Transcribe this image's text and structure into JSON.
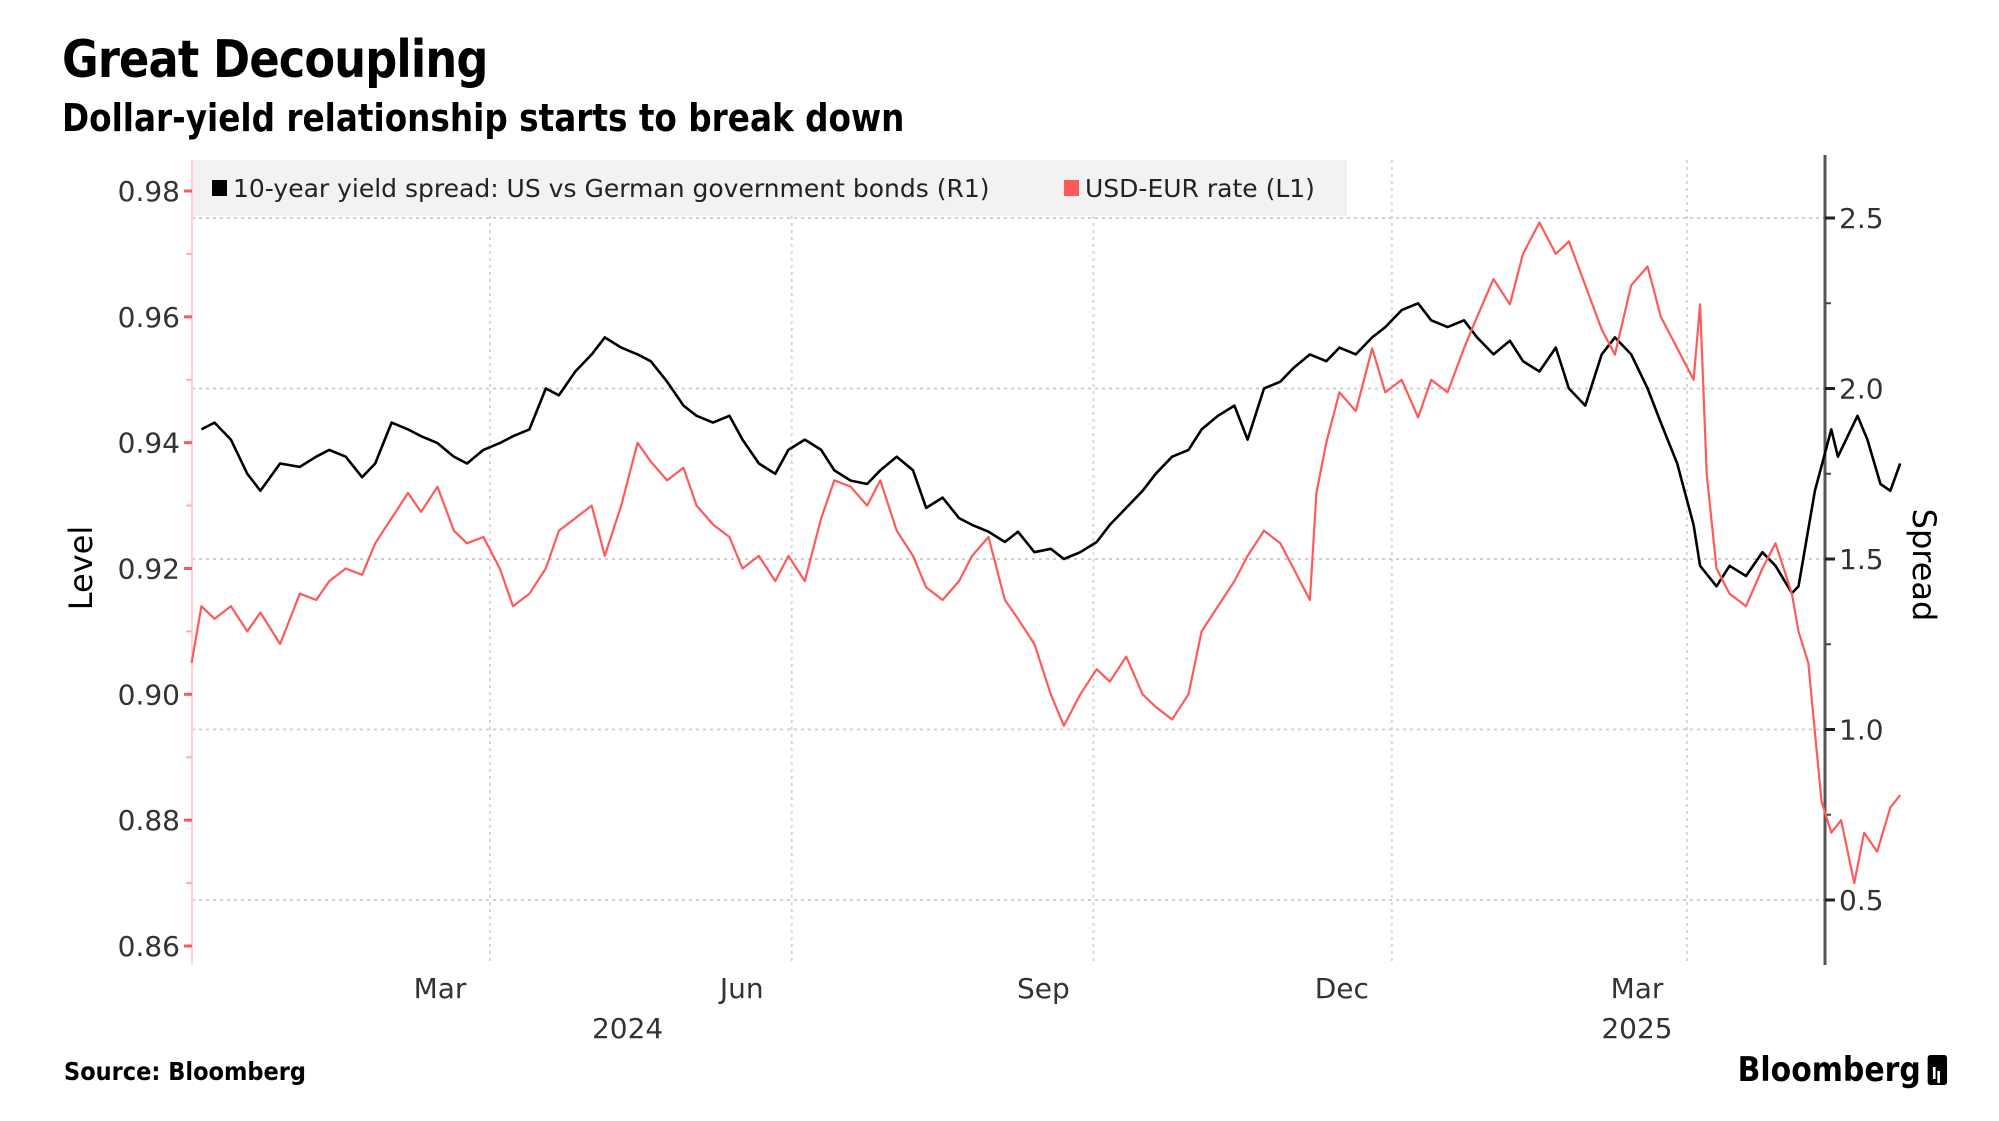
{
  "header": {
    "title": "Great Decoupling",
    "subtitle": "Dollar-yield relationship starts to break down"
  },
  "footer": {
    "source": "Source: Bloomberg",
    "brand": "Bloomberg"
  },
  "colors": {
    "spread": "#000000",
    "usdeur": "#ff5a5a",
    "legend_bg": "#f2f2f2",
    "grid": "#c8c8c8"
  },
  "chart_data": {
    "type": "line",
    "title": "Great Decoupling",
    "subtitle": "Dollar-yield relationship starts to break down",
    "xlabel": "",
    "ylabel_left": "Level",
    "ylabel_right": "Spread",
    "ylim_left": [
      0.86,
      0.98
    ],
    "ylim_right": [
      0.3,
      2.7
    ],
    "yticks_left": [
      "0.98",
      "0.96",
      "0.94",
      "0.92",
      "0.90",
      "0.88",
      "0.86"
    ],
    "yticks_left_values": [
      0.98,
      0.96,
      0.94,
      0.92,
      0.9,
      0.88,
      0.86
    ],
    "yticks_right": [
      "2.5",
      "2.0",
      "1.5",
      "1.0",
      "0.5"
    ],
    "yticks_right_values": [
      2.5,
      2.0,
      1.5,
      1.0,
      0.5
    ],
    "xticks": [
      {
        "label": "Mar",
        "date": "2024-03-01"
      },
      {
        "label": "Jun",
        "date": "2024-06-01"
      },
      {
        "label": "Sep",
        "date": "2024-09-01"
      },
      {
        "label": "Dec",
        "date": "2024-12-01"
      },
      {
        "label": "Mar",
        "date": "2025-03-01"
      }
    ],
    "year_labels": [
      {
        "label": "2024",
        "date": "2024-06-15"
      },
      {
        "label": "2025",
        "date": "2025-03-01"
      }
    ],
    "x_range": [
      "2023-12-01",
      "2025-04-20"
    ],
    "grid": true,
    "legend_position": "top-left",
    "series": [
      {
        "name": "10-year yield spread: US vs German government bonds (R1)",
        "axis": "right",
        "color": "#000000",
        "points": [
          [
            "2023-12-04",
            1.88
          ],
          [
            "2023-12-08",
            1.9
          ],
          [
            "2023-12-13",
            1.85
          ],
          [
            "2023-12-18",
            1.75
          ],
          [
            "2023-12-22",
            1.7
          ],
          [
            "2023-12-28",
            1.78
          ],
          [
            "2024-01-03",
            1.77
          ],
          [
            "2024-01-08",
            1.8
          ],
          [
            "2024-01-12",
            1.82
          ],
          [
            "2024-01-17",
            1.8
          ],
          [
            "2024-01-22",
            1.74
          ],
          [
            "2024-01-26",
            1.78
          ],
          [
            "2024-01-31",
            1.9
          ],
          [
            "2024-02-05",
            1.88
          ],
          [
            "2024-02-09",
            1.86
          ],
          [
            "2024-02-14",
            1.84
          ],
          [
            "2024-02-19",
            1.8
          ],
          [
            "2024-02-23",
            1.78
          ],
          [
            "2024-02-28",
            1.82
          ],
          [
            "2024-03-04",
            1.84
          ],
          [
            "2024-03-08",
            1.86
          ],
          [
            "2024-03-13",
            1.88
          ],
          [
            "2024-03-18",
            2.0
          ],
          [
            "2024-03-22",
            1.98
          ],
          [
            "2024-03-27",
            2.05
          ],
          [
            "2024-04-01",
            2.1
          ],
          [
            "2024-04-05",
            2.15
          ],
          [
            "2024-04-10",
            2.12
          ],
          [
            "2024-04-15",
            2.1
          ],
          [
            "2024-04-19",
            2.08
          ],
          [
            "2024-04-24",
            2.02
          ],
          [
            "2024-04-29",
            1.95
          ],
          [
            "2024-05-03",
            1.92
          ],
          [
            "2024-05-08",
            1.9
          ],
          [
            "2024-05-13",
            1.92
          ],
          [
            "2024-05-17",
            1.85
          ],
          [
            "2024-05-22",
            1.78
          ],
          [
            "2024-05-27",
            1.75
          ],
          [
            "2024-05-31",
            1.82
          ],
          [
            "2024-06-05",
            1.85
          ],
          [
            "2024-06-10",
            1.82
          ],
          [
            "2024-06-14",
            1.76
          ],
          [
            "2024-06-19",
            1.73
          ],
          [
            "2024-06-24",
            1.72
          ],
          [
            "2024-06-28",
            1.76
          ],
          [
            "2024-07-03",
            1.8
          ],
          [
            "2024-07-08",
            1.76
          ],
          [
            "2024-07-12",
            1.65
          ],
          [
            "2024-07-17",
            1.68
          ],
          [
            "2024-07-22",
            1.62
          ],
          [
            "2024-07-26",
            1.6
          ],
          [
            "2024-07-31",
            1.58
          ],
          [
            "2024-08-05",
            1.55
          ],
          [
            "2024-08-09",
            1.58
          ],
          [
            "2024-08-14",
            1.52
          ],
          [
            "2024-08-19",
            1.53
          ],
          [
            "2024-08-23",
            1.5
          ],
          [
            "2024-08-28",
            1.52
          ],
          [
            "2024-09-02",
            1.55
          ],
          [
            "2024-09-06",
            1.6
          ],
          [
            "2024-09-11",
            1.65
          ],
          [
            "2024-09-16",
            1.7
          ],
          [
            "2024-09-20",
            1.75
          ],
          [
            "2024-09-25",
            1.8
          ],
          [
            "2024-09-30",
            1.82
          ],
          [
            "2024-10-04",
            1.88
          ],
          [
            "2024-10-09",
            1.92
          ],
          [
            "2024-10-14",
            1.95
          ],
          [
            "2024-10-18",
            1.85
          ],
          [
            "2024-10-23",
            2.0
          ],
          [
            "2024-10-28",
            2.02
          ],
          [
            "2024-11-01",
            2.06
          ],
          [
            "2024-11-06",
            2.1
          ],
          [
            "2024-11-11",
            2.08
          ],
          [
            "2024-11-15",
            2.12
          ],
          [
            "2024-11-20",
            2.1
          ],
          [
            "2024-11-25",
            2.15
          ],
          [
            "2024-11-29",
            2.18
          ],
          [
            "2024-12-04",
            2.23
          ],
          [
            "2024-12-09",
            2.25
          ],
          [
            "2024-12-13",
            2.2
          ],
          [
            "2024-12-18",
            2.18
          ],
          [
            "2024-12-23",
            2.2
          ],
          [
            "2024-12-27",
            2.15
          ],
          [
            "2025-01-01",
            2.1
          ],
          [
            "2025-01-06",
            2.14
          ],
          [
            "2025-01-10",
            2.08
          ],
          [
            "2025-01-15",
            2.05
          ],
          [
            "2025-01-20",
            2.12
          ],
          [
            "2025-01-24",
            2.0
          ],
          [
            "2025-01-29",
            1.95
          ],
          [
            "2025-02-03",
            2.1
          ],
          [
            "2025-02-07",
            2.15
          ],
          [
            "2025-02-12",
            2.1
          ],
          [
            "2025-02-17",
            2.0
          ],
          [
            "2025-02-21",
            1.9
          ],
          [
            "2025-02-26",
            1.78
          ],
          [
            "2025-03-03",
            1.6
          ],
          [
            "2025-03-05",
            1.48
          ],
          [
            "2025-03-10",
            1.42
          ],
          [
            "2025-03-14",
            1.48
          ],
          [
            "2025-03-19",
            1.45
          ],
          [
            "2025-03-24",
            1.52
          ],
          [
            "2025-03-28",
            1.48
          ],
          [
            "2025-04-02",
            1.4
          ],
          [
            "2025-04-04",
            1.42
          ],
          [
            "2025-04-09",
            1.7
          ],
          [
            "2025-04-14",
            1.88
          ],
          [
            "2025-04-16",
            1.8
          ],
          [
            "2025-04-19",
            1.86
          ],
          [
            "2025-04-22",
            1.92
          ],
          [
            "2025-04-25",
            1.85
          ],
          [
            "2025-04-29",
            1.72
          ],
          [
            "2025-05-02",
            1.7
          ],
          [
            "2025-05-05",
            1.78
          ]
        ]
      },
      {
        "name": "USD-EUR rate (L1)",
        "axis": "left",
        "color": "#ff5a5a",
        "points": [
          [
            "2023-12-01",
            0.905
          ],
          [
            "2023-12-04",
            0.914
          ],
          [
            "2023-12-08",
            0.912
          ],
          [
            "2023-12-13",
            0.914
          ],
          [
            "2023-12-18",
            0.91
          ],
          [
            "2023-12-22",
            0.913
          ],
          [
            "2023-12-28",
            0.908
          ],
          [
            "2024-01-03",
            0.916
          ],
          [
            "2024-01-08",
            0.915
          ],
          [
            "2024-01-12",
            0.918
          ],
          [
            "2024-01-17",
            0.92
          ],
          [
            "2024-01-22",
            0.919
          ],
          [
            "2024-01-26",
            0.924
          ],
          [
            "2024-01-31",
            0.928
          ],
          [
            "2024-02-05",
            0.932
          ],
          [
            "2024-02-09",
            0.929
          ],
          [
            "2024-02-14",
            0.933
          ],
          [
            "2024-02-19",
            0.926
          ],
          [
            "2024-02-23",
            0.924
          ],
          [
            "2024-02-28",
            0.925
          ],
          [
            "2024-03-04",
            0.92
          ],
          [
            "2024-03-08",
            0.914
          ],
          [
            "2024-03-13",
            0.916
          ],
          [
            "2024-03-18",
            0.92
          ],
          [
            "2024-03-22",
            0.926
          ],
          [
            "2024-03-27",
            0.928
          ],
          [
            "2024-04-01",
            0.93
          ],
          [
            "2024-04-05",
            0.922
          ],
          [
            "2024-04-10",
            0.93
          ],
          [
            "2024-04-15",
            0.94
          ],
          [
            "2024-04-19",
            0.937
          ],
          [
            "2024-04-24",
            0.934
          ],
          [
            "2024-04-29",
            0.936
          ],
          [
            "2024-05-03",
            0.93
          ],
          [
            "2024-05-08",
            0.927
          ],
          [
            "2024-05-13",
            0.925
          ],
          [
            "2024-05-17",
            0.92
          ],
          [
            "2024-05-22",
            0.922
          ],
          [
            "2024-05-27",
            0.918
          ],
          [
            "2024-05-31",
            0.922
          ],
          [
            "2024-06-05",
            0.918
          ],
          [
            "2024-06-10",
            0.928
          ],
          [
            "2024-06-14",
            0.934
          ],
          [
            "2024-06-19",
            0.933
          ],
          [
            "2024-06-24",
            0.93
          ],
          [
            "2024-06-28",
            0.934
          ],
          [
            "2024-07-03",
            0.926
          ],
          [
            "2024-07-08",
            0.922
          ],
          [
            "2024-07-12",
            0.917
          ],
          [
            "2024-07-17",
            0.915
          ],
          [
            "2024-07-22",
            0.918
          ],
          [
            "2024-07-26",
            0.922
          ],
          [
            "2024-07-31",
            0.925
          ],
          [
            "2024-08-05",
            0.915
          ],
          [
            "2024-08-09",
            0.912
          ],
          [
            "2024-08-14",
            0.908
          ],
          [
            "2024-08-19",
            0.9
          ],
          [
            "2024-08-23",
            0.895
          ],
          [
            "2024-08-28",
            0.9
          ],
          [
            "2024-09-02",
            0.904
          ],
          [
            "2024-09-06",
            0.902
          ],
          [
            "2024-09-11",
            0.906
          ],
          [
            "2024-09-16",
            0.9
          ],
          [
            "2024-09-20",
            0.898
          ],
          [
            "2024-09-25",
            0.896
          ],
          [
            "2024-09-30",
            0.9
          ],
          [
            "2024-10-04",
            0.91
          ],
          [
            "2024-10-09",
            0.914
          ],
          [
            "2024-10-14",
            0.918
          ],
          [
            "2024-10-18",
            0.922
          ],
          [
            "2024-10-23",
            0.926
          ],
          [
            "2024-10-28",
            0.924
          ],
          [
            "2024-11-01",
            0.92
          ],
          [
            "2024-11-06",
            0.915
          ],
          [
            "2024-11-08",
            0.932
          ],
          [
            "2024-11-11",
            0.94
          ],
          [
            "2024-11-15",
            0.948
          ],
          [
            "2024-11-20",
            0.945
          ],
          [
            "2024-11-25",
            0.955
          ],
          [
            "2024-11-29",
            0.948
          ],
          [
            "2024-12-04",
            0.95
          ],
          [
            "2024-12-09",
            0.944
          ],
          [
            "2024-12-13",
            0.95
          ],
          [
            "2024-12-18",
            0.948
          ],
          [
            "2024-12-23",
            0.955
          ],
          [
            "2024-12-27",
            0.96
          ],
          [
            "2025-01-01",
            0.966
          ],
          [
            "2025-01-06",
            0.962
          ],
          [
            "2025-01-10",
            0.97
          ],
          [
            "2025-01-15",
            0.975
          ],
          [
            "2025-01-20",
            0.97
          ],
          [
            "2025-01-24",
            0.972
          ],
          [
            "2025-01-29",
            0.965
          ],
          [
            "2025-02-03",
            0.958
          ],
          [
            "2025-02-07",
            0.954
          ],
          [
            "2025-02-12",
            0.965
          ],
          [
            "2025-02-17",
            0.968
          ],
          [
            "2025-02-21",
            0.96
          ],
          [
            "2025-02-26",
            0.955
          ],
          [
            "2025-03-03",
            0.95
          ],
          [
            "2025-03-05",
            0.962
          ],
          [
            "2025-03-07",
            0.935
          ],
          [
            "2025-03-10",
            0.92
          ],
          [
            "2025-03-14",
            0.916
          ],
          [
            "2025-03-19",
            0.914
          ],
          [
            "2025-03-24",
            0.92
          ],
          [
            "2025-03-28",
            0.924
          ],
          [
            "2025-04-02",
            0.916
          ],
          [
            "2025-04-04",
            0.91
          ],
          [
            "2025-04-07",
            0.905
          ],
          [
            "2025-04-11",
            0.883
          ],
          [
            "2025-04-14",
            0.878
          ],
          [
            "2025-04-17",
            0.88
          ],
          [
            "2025-04-21",
            0.87
          ],
          [
            "2025-04-24",
            0.878
          ],
          [
            "2025-04-28",
            0.875
          ],
          [
            "2025-05-02",
            0.882
          ],
          [
            "2025-05-05",
            0.884
          ]
        ]
      }
    ],
    "legend": [
      {
        "label": "10-year yield spread: US vs German government bonds (R1)",
        "color": "#000000"
      },
      {
        "label": "USD-EUR rate (L1)",
        "color": "#ff5a5a"
      }
    ]
  }
}
